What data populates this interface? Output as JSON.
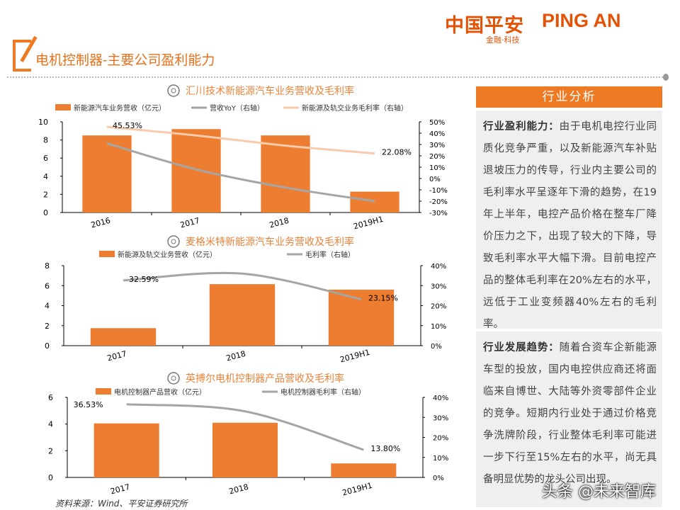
{
  "header": {
    "logo_cn": "中国平安",
    "logo_en": "PING AN",
    "logo_sub": "金融·科技",
    "title": "电机控制器-主要公司盈利能力"
  },
  "panel": {
    "heading": "行业分析",
    "sections": [
      {
        "label": "行业盈利能力：",
        "text": "由于电机电控行业同质化竞争严重，以及新能源汽车补贴退坡压力的传导，行业内主要公司的毛利率水平呈逐年下滑的趋势，在19年上半年，电控产品价格在整车厂降价压力之下，出现了较大的下降，导致毛利率水平大幅下滑。目前电控产品的整体毛利率在20%左右的水平，远低于工业变频器40%左右的毛利率。"
      },
      {
        "label": "行业发展趋势：",
        "text": "随着合资车企新能源车型的投放，国内电控供应商还将面临来自博世、大陆等外资零部件企业的竞争。短期内行业处于通过价格竞争洗牌阶段，行业整体毛利率可能进一步下行至15%左右的水平，尚无具备明显优势的龙头公司出现。"
      }
    ]
  },
  "source": "资料来源：Wind、平安证券研究所",
  "watermark": "头条 @未来智库",
  "colors": {
    "accent": "#EE7B24",
    "bar": "#ED7D31",
    "line_gray": "#A5A5A5",
    "line_light": "#F8CBAD",
    "title": "#E8833A"
  },
  "chart_data": [
    {
      "type": "bar+line",
      "title": "汇川技术新能源汽车业务营收及毛利率",
      "categories": [
        "2016",
        "2017",
        "2018",
        "2019H1"
      ],
      "ylim": [
        0,
        10
      ],
      "yticks": [
        "0",
        "2",
        "4",
        "6",
        "8",
        "10"
      ],
      "y2lim": [
        -30,
        50
      ],
      "y2ticks": [
        "-30%",
        "-20%",
        "-10%",
        "0%",
        "10%",
        "20%",
        "30%",
        "40%",
        "50%"
      ],
      "legend_position": "top",
      "series": [
        {
          "name": "新能源汽车业务营收（亿元）",
          "kind": "bar",
          "axis": "left",
          "values": [
            8.5,
            9.2,
            8.5,
            2.3
          ]
        },
        {
          "name": "营收YoY（右轴）",
          "kind": "line",
          "axis": "right",
          "color": "gray",
          "values": [
            31,
            8,
            -8,
            -20
          ]
        },
        {
          "name": "新能源及轨交业务毛利率（右轴）",
          "kind": "line",
          "axis": "right",
          "color": "light",
          "values": [
            45.53,
            38,
            29,
            22.08
          ],
          "labels": [
            "45.53%",
            "",
            "",
            "22.08%"
          ]
        }
      ]
    },
    {
      "type": "bar+line",
      "title": "麦格米特新能源汽车业务营收及毛利率",
      "categories": [
        "2017",
        "2018",
        "2019H1"
      ],
      "ylim": [
        0,
        8
      ],
      "yticks": [
        "0",
        "2",
        "4",
        "6",
        "8"
      ],
      "y2lim": [
        0,
        40
      ],
      "y2ticks": [
        "0%",
        "10%",
        "20%",
        "30%",
        "40%"
      ],
      "legend_position": "top",
      "series": [
        {
          "name": "新能源及轨交业务营收（亿元）",
          "kind": "bar",
          "axis": "left",
          "values": [
            1.75,
            6.15,
            5.6
          ]
        },
        {
          "name": "毛利率（右轴）",
          "kind": "line",
          "axis": "right",
          "color": "gray",
          "values": [
            32.59,
            36,
            23.15
          ],
          "labels": [
            "32.59%",
            "",
            "23.15%"
          ]
        }
      ]
    },
    {
      "type": "bar+line",
      "title": "英搏尔电机控制器产品营收及毛利率",
      "categories": [
        "2017",
        "2018",
        "2019H1"
      ],
      "ylim": [
        0,
        6
      ],
      "yticks": [
        "0",
        "2",
        "4",
        "6"
      ],
      "y2lim": [
        0,
        40
      ],
      "y2ticks": [
        "0%",
        "10%",
        "20%",
        "30%",
        "40%"
      ],
      "legend_position": "top",
      "series": [
        {
          "name": "电机控制器产品营收（亿元）",
          "kind": "bar",
          "axis": "left",
          "values": [
            4.05,
            4.1,
            1.05
          ]
        },
        {
          "name": "电机控制器毛利率（右轴）",
          "kind": "line",
          "axis": "right",
          "color": "gray",
          "values": [
            36.53,
            33,
            13.8
          ],
          "labels": [
            "36.53%",
            "",
            "13.80%"
          ]
        }
      ]
    }
  ]
}
